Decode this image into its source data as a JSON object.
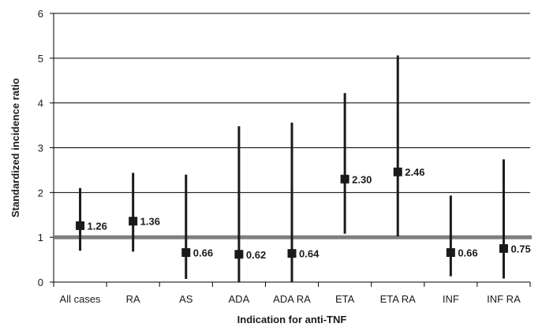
{
  "chart_data": {
    "type": "scatter",
    "subtype": "point-estimate with confidence interval",
    "title": "",
    "xlabel": "Indication for anti-TNF",
    "ylabel": "Standardized incidence ratio",
    "ylim": [
      0,
      6
    ],
    "yticks": [
      "0",
      "1",
      "2",
      "3",
      "4",
      "5",
      "6"
    ],
    "grid": true,
    "reference_line": 1,
    "categories": [
      "All cases",
      "RA",
      "AS",
      "ADA",
      "ADA RA",
      "ETA",
      "ETA RA",
      "INF",
      "INF RA"
    ],
    "values": [
      1.26,
      1.36,
      0.66,
      0.62,
      0.64,
      2.3,
      2.46,
      0.66,
      0.75
    ],
    "value_labels": [
      "1.26",
      "1.36",
      "0.66",
      "0.62",
      "0.64",
      "2.30",
      "2.46",
      "0.66",
      "0.75"
    ],
    "ci_lower": [
      0.7,
      0.68,
      0.07,
      0.0,
      0.0,
      1.08,
      1.02,
      0.13,
      0.08
    ],
    "ci_upper": [
      2.1,
      2.44,
      2.4,
      3.48,
      3.56,
      4.22,
      5.06,
      1.93,
      2.74
    ],
    "colors": {
      "marker": "#1a1a1a",
      "reference": "#7f7f7f",
      "grid": "#000000"
    }
  }
}
